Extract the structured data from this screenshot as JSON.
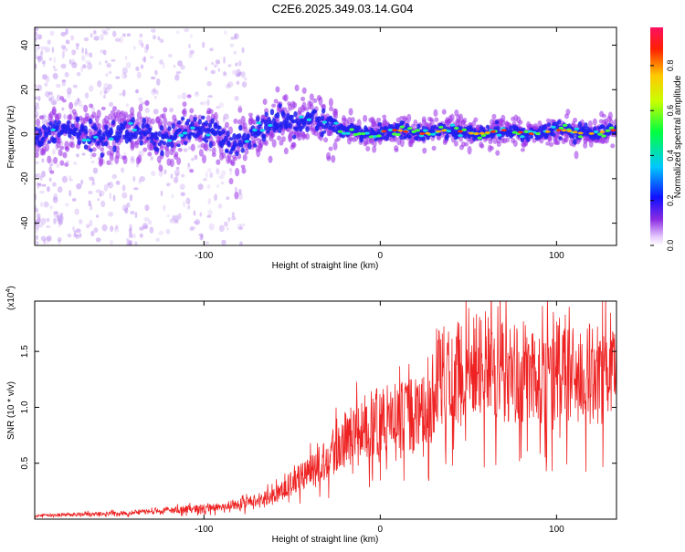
{
  "title": "C2E6.2025.349.03.14.G04",
  "chart_data": [
    {
      "type": "heatmap",
      "name": "spectrogram",
      "xlabel": "Height of straight line (km)",
      "ylabel": "Frequency (Hz)",
      "xlim": [
        -196,
        134
      ],
      "ylim": [
        -50,
        48
      ],
      "xticks": [
        -100,
        0,
        100
      ],
      "yticks": [
        -40,
        -20,
        0,
        20,
        40
      ],
      "colorbar": {
        "label": "Normalized spectral amplitude",
        "range": [
          0,
          0.97
        ],
        "ticks": [
          "0.0",
          "0.2",
          "0.4",
          "0.6",
          "0.8"
        ],
        "tick_values": [
          0,
          0.2,
          0.4,
          0.6,
          0.8
        ]
      },
      "description": "Spectral energy concentrated near 0 Hz; broadband noise below -90 km; signal rises to ~8 Hz near -40 km; strong narrow band near 0 Hz above 0 km."
    },
    {
      "type": "line",
      "name": "snr",
      "xlabel": "Height of straight line (km)",
      "ylabel": "SNR (10 * v/v)",
      "scale_label": "(x10",
      "scale_exp": "4",
      "scale_close": ")",
      "xlim": [
        -196,
        134
      ],
      "ylim": [
        0,
        1.95
      ],
      "xticks": [
        -100,
        0,
        100
      ],
      "yticks": [
        "0.5",
        "1.0",
        "1.5"
      ],
      "ytick_values": [
        0.5,
        1.0,
        1.5
      ],
      "color": "#ee2222",
      "series": [
        {
          "name": "SNR",
          "x": [
            -196,
            -180,
            -160,
            -140,
            -120,
            -100,
            -80,
            -70,
            -60,
            -50,
            -40,
            -30,
            -20,
            -10,
            0,
            10,
            20,
            28,
            32,
            40,
            50,
            60,
            70,
            80,
            90,
            100,
            110,
            120,
            134
          ],
          "values": [
            0.03,
            0.04,
            0.05,
            0.06,
            0.08,
            0.1,
            0.13,
            0.17,
            0.22,
            0.32,
            0.42,
            0.55,
            0.7,
            0.82,
            0.88,
            0.9,
            0.95,
            0.95,
            1.28,
            1.3,
            1.35,
            1.4,
            1.3,
            1.32,
            1.3,
            1.35,
            1.28,
            1.3,
            1.3
          ]
        }
      ]
    }
  ]
}
